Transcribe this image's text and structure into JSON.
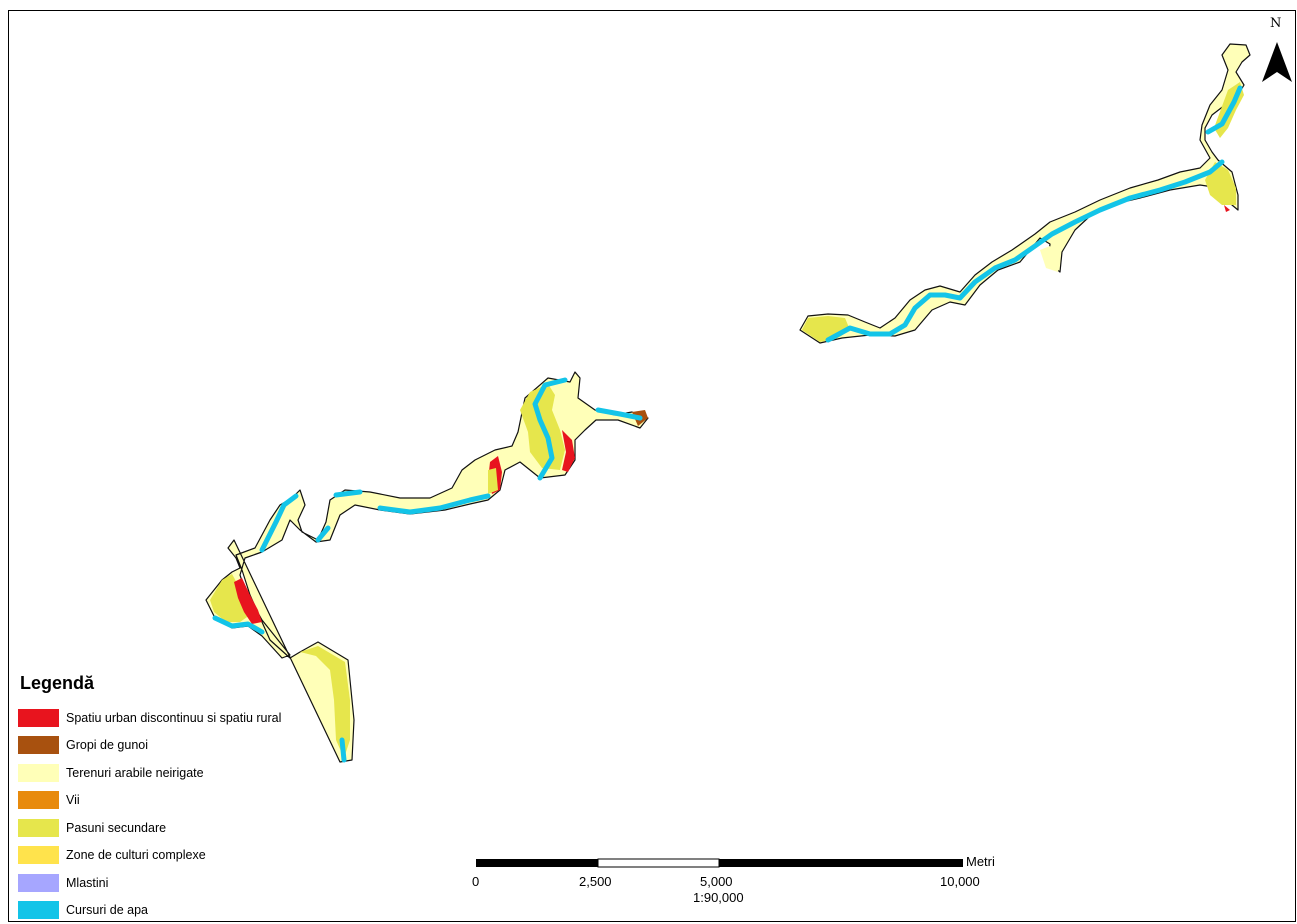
{
  "legend": {
    "title": "Legendă",
    "items": [
      {
        "label": "Spatiu urban discontinuu si spatiu rural",
        "color": "#e8141e"
      },
      {
        "label": "Gropi de gunoi",
        "color": "#a8510f"
      },
      {
        "label": "Terenuri arabile neirigate",
        "color": "#ffffb8"
      },
      {
        "label": "Vii",
        "color": "#e88a0c"
      },
      {
        "label": "Pasuni secundare",
        "color": "#e6e64c"
      },
      {
        "label": "Zone de culturi complexe",
        "color": "#ffe34c"
      },
      {
        "label": "Mlastini",
        "color": "#a6a6ff"
      },
      {
        "label": "Cursuri de apa",
        "color": "#13c4e8"
      }
    ]
  },
  "north_arrow": {
    "label": "N"
  },
  "scale_bar": {
    "unit": "Metri",
    "ticks": [
      "0",
      "2,500",
      "5,000",
      "10,000"
    ],
    "ratio": "1:90,000"
  }
}
